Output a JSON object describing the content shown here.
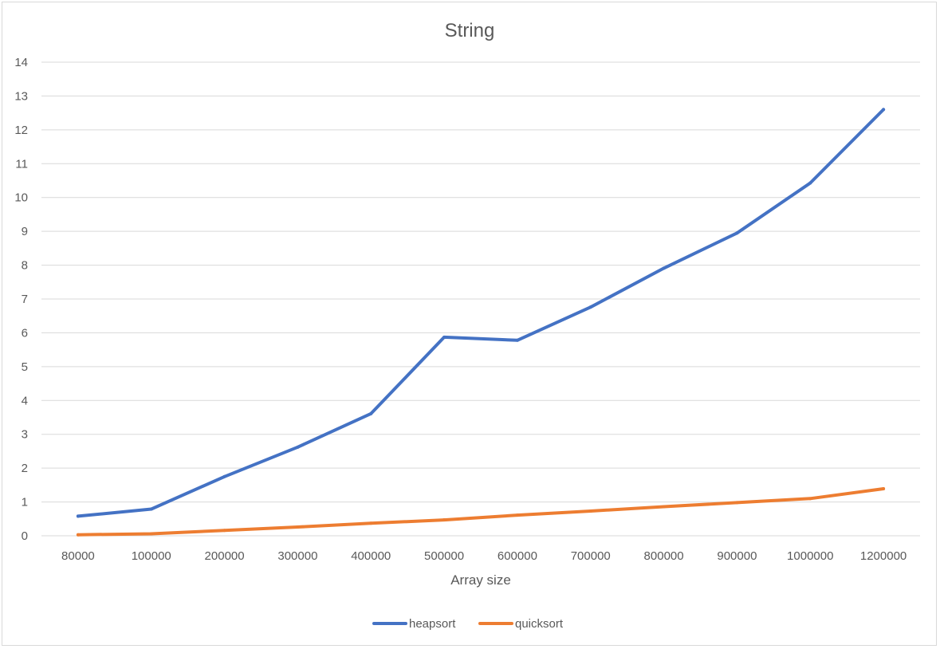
{
  "chart_data": {
    "type": "line",
    "title": "String",
    "xlabel": "Array size",
    "ylabel": "",
    "categories": [
      "80000",
      "100000",
      "200000",
      "300000",
      "400000",
      "500000",
      "600000",
      "700000",
      "800000",
      "900000",
      "1000000",
      "1200000"
    ],
    "ylim": [
      0,
      14
    ],
    "yticks": [
      "0",
      "1",
      "2",
      "3",
      "4",
      "5",
      "6",
      "7",
      "8",
      "9",
      "10",
      "11",
      "12",
      "13",
      "14"
    ],
    "grid": true,
    "legend_position": "bottom",
    "series": [
      {
        "name": "heapsort",
        "color": "#4472c4",
        "values": [
          0.58,
          0.79,
          1.75,
          2.62,
          3.61,
          5.87,
          5.78,
          6.76,
          7.91,
          8.95,
          10.43,
          12.6
        ]
      },
      {
        "name": "quicksort",
        "color": "#ed7d31",
        "values": [
          0.03,
          0.06,
          0.16,
          0.26,
          0.37,
          0.47,
          0.61,
          0.73,
          0.86,
          0.98,
          1.1,
          1.39
        ]
      }
    ]
  }
}
